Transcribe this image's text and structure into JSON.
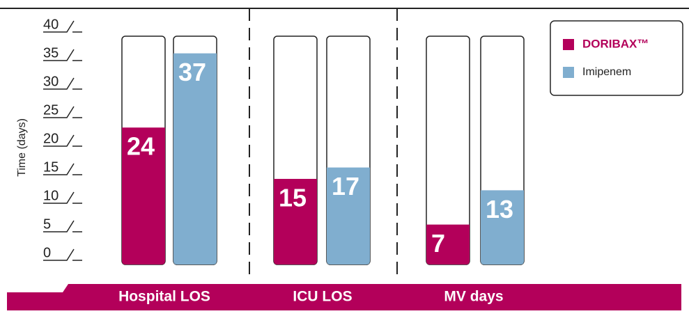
{
  "chart_data": {
    "type": "bar",
    "y_label": "Time (days)",
    "categories": [
      "Hospital LOS",
      "ICU LOS",
      "MV days"
    ],
    "series": [
      {
        "name": "DORIBAX™",
        "color": "#b3005a",
        "values": [
          24,
          15,
          7
        ]
      },
      {
        "name": "Imipenem",
        "color": "#80aecf",
        "values": [
          37,
          17,
          13
        ]
      }
    ],
    "ylim": [
      0,
      40
    ],
    "yticks": [
      0,
      5,
      10,
      15,
      20,
      25,
      30,
      35,
      40
    ],
    "legend": "upper right"
  }
}
